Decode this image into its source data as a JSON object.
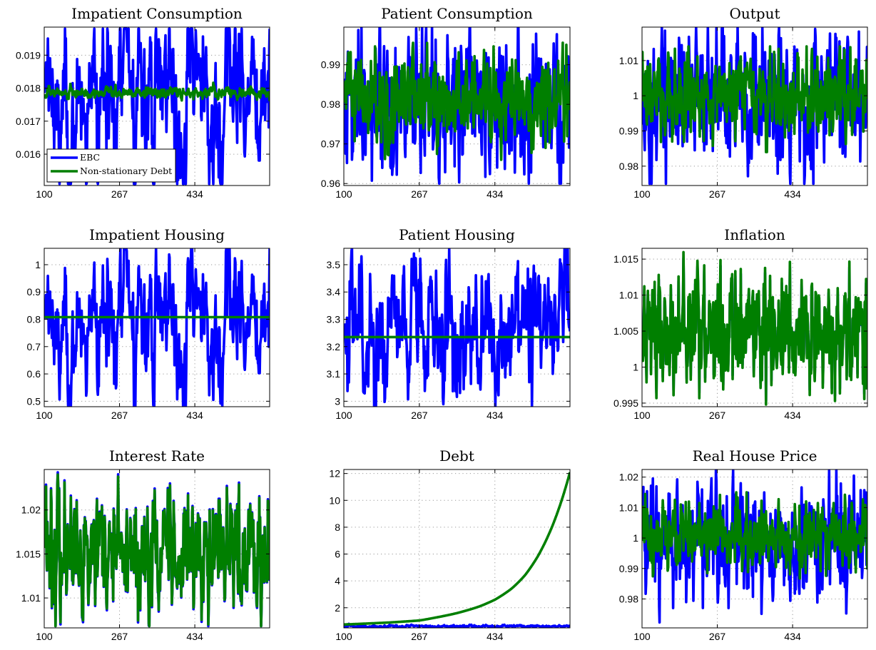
{
  "figure": {
    "x_ticks": [
      "100",
      "267",
      "434"
    ],
    "legend": [
      "EBC",
      "Non-stationary Debt"
    ],
    "colors": {
      "ebc": "#0000ff",
      "nsd": "#007f00",
      "grid": "#9a9a9a",
      "axis": "#000000"
    }
  },
  "chart_data": [
    {
      "type": "line",
      "title": "Impatient Consumption",
      "xlim": [
        100,
        600
      ],
      "ylim": [
        0.01505,
        0.01985
      ],
      "yticks": [
        0.016,
        0.017,
        0.018,
        0.019
      ],
      "ytick_labels": [
        "0.016",
        "0.017",
        "0.018",
        "0.019"
      ],
      "xticks": [
        100,
        267,
        434
      ],
      "xtick_labels": [
        "100",
        "267",
        "434"
      ],
      "series": [
        {
          "name": "EBC",
          "color": "#0000ff",
          "kind": "noise",
          "mean": 0.01775,
          "spread": 0.00135,
          "ar": 0.72,
          "lo": 0.0151,
          "hi": 0.0198,
          "seed": 11
        },
        {
          "name": "Non-stationary Debt",
          "color": "#007f00",
          "kind": "noise",
          "mean": 0.01785,
          "spread": 8e-05,
          "ar": 0.5,
          "lo": 0.0174,
          "hi": 0.0182,
          "seed": 12
        }
      ]
    },
    {
      "type": "line",
      "title": "Patient Consumption",
      "xlim": [
        100,
        600
      ],
      "ylim": [
        0.9595,
        0.9995
      ],
      "yticks": [
        0.96,
        0.97,
        0.98,
        0.99
      ],
      "ytick_labels": [
        "0.96",
        "0.97",
        "0.98",
        "0.99"
      ],
      "xticks": [
        100,
        267,
        434
      ],
      "xtick_labels": [
        "100",
        "267",
        "434"
      ],
      "series": [
        {
          "name": "EBC",
          "color": "#0000ff",
          "kind": "noise",
          "mean": 0.9805,
          "spread": 0.0085,
          "ar": 0.3,
          "lo": 0.96,
          "hi": 0.9995,
          "seed": 21
        },
        {
          "name": "Non-stationary Debt",
          "color": "#007f00",
          "kind": "noise",
          "mean": 0.981,
          "spread": 0.006,
          "ar": 0.3,
          "lo": 0.966,
          "hi": 0.9995,
          "seed": 22
        }
      ]
    },
    {
      "type": "line",
      "title": "Output",
      "xlim": [
        100,
        600
      ],
      "ylim": [
        0.9745,
        1.0195
      ],
      "yticks": [
        0.98,
        0.99,
        1,
        1.01
      ],
      "ytick_labels": [
        "0.98",
        "0.99",
        "1",
        "1.01"
      ],
      "xticks": [
        100,
        267,
        434
      ],
      "xtick_labels": [
        "100",
        "267",
        "434"
      ],
      "series": [
        {
          "name": "EBC",
          "color": "#0000ff",
          "kind": "noise",
          "mean": 0.9995,
          "spread": 0.0095,
          "ar": 0.3,
          "lo": 0.975,
          "hi": 1.0195,
          "seed": 31
        },
        {
          "name": "Non-stationary Debt",
          "color": "#007f00",
          "kind": "noise",
          "mean": 1.0,
          "spread": 0.006,
          "ar": 0.3,
          "lo": 0.984,
          "hi": 1.014,
          "seed": 32
        }
      ]
    },
    {
      "type": "line",
      "title": "Impatient Housing",
      "xlim": [
        100,
        600
      ],
      "ylim": [
        0.48,
        1.06
      ],
      "yticks": [
        0.5,
        0.6,
        0.7,
        0.8,
        0.9,
        1
      ],
      "ytick_labels": [
        "0.5",
        "0.6",
        "0.7",
        "0.8",
        "0.9",
        "1"
      ],
      "xticks": [
        100,
        267,
        434
      ],
      "xtick_labels": [
        "100",
        "267",
        "434"
      ],
      "series": [
        {
          "name": "EBC",
          "color": "#0000ff",
          "kind": "noise",
          "mean": 0.79,
          "spread": 0.13,
          "ar": 0.72,
          "lo": 0.48,
          "hi": 1.06,
          "seed": 11
        },
        {
          "name": "Non-stationary Debt",
          "color": "#007f00",
          "kind": "flat",
          "value": 0.808
        }
      ]
    },
    {
      "type": "line",
      "title": "Patient Housing",
      "xlim": [
        100,
        600
      ],
      "ylim": [
        2.98,
        3.56
      ],
      "yticks": [
        3,
        3.1,
        3.2,
        3.3,
        3.4,
        3.5
      ],
      "ytick_labels": [
        "3",
        "3.1",
        "3.2",
        "3.3",
        "3.4",
        "3.5"
      ],
      "xticks": [
        100,
        267,
        434
      ],
      "xtick_labels": [
        "100",
        "267",
        "434"
      ],
      "series": [
        {
          "name": "EBC",
          "color": "#0000ff",
          "kind": "noise",
          "mean": 3.245,
          "spread": 0.14,
          "ar": 0.72,
          "lo": 2.98,
          "hi": 3.56,
          "seed": 51
        },
        {
          "name": "Non-stationary Debt",
          "color": "#007f00",
          "kind": "flat",
          "value": 3.235
        }
      ]
    },
    {
      "type": "line",
      "title": "Inflation",
      "xlim": [
        100,
        600
      ],
      "ylim": [
        0.9945,
        1.0165
      ],
      "yticks": [
        0.995,
        1,
        1.005,
        1.01,
        1.015
      ],
      "ytick_labels": [
        "0.995",
        "1",
        "1.005",
        "1.01",
        "1.015"
      ],
      "xticks": [
        100,
        267,
        434
      ],
      "xtick_labels": [
        "100",
        "267",
        "434"
      ],
      "series": [
        {
          "name": "EBC",
          "color": "#0000ff",
          "kind": "noise",
          "mean": 1.005,
          "spread": 0.0035,
          "ar": 0.2,
          "lo": 0.9948,
          "hi": 1.0165,
          "seed": 61
        },
        {
          "name": "Non-stationary Debt",
          "color": "#007f00",
          "kind": "noise",
          "mean": 1.005,
          "spread": 0.0038,
          "ar": 0.2,
          "lo": 0.9948,
          "hi": 1.0165,
          "seed": 61
        }
      ]
    },
    {
      "type": "line",
      "title": "Interest Rate",
      "xlim": [
        100,
        600
      ],
      "ylim": [
        1.0066,
        1.0246
      ],
      "yticks": [
        1.01,
        1.015,
        1.02
      ],
      "ytick_labels": [
        "1.01",
        "1.015",
        "1.02"
      ],
      "xticks": [
        100,
        267,
        434
      ],
      "xtick_labels": [
        "100",
        "267",
        "434"
      ],
      "series": [
        {
          "name": "EBC",
          "color": "#0000ff",
          "kind": "noise",
          "mean": 1.0152,
          "spread": 0.0035,
          "ar": 0.35,
          "lo": 1.0068,
          "hi": 1.0245,
          "seed": 71
        },
        {
          "name": "Non-stationary Debt",
          "color": "#007f00",
          "kind": "noise",
          "mean": 1.0152,
          "spread": 0.0034,
          "ar": 0.35,
          "lo": 1.0068,
          "hi": 1.0245,
          "seed": 71
        }
      ]
    },
    {
      "type": "line",
      "title": "Debt",
      "xlim": [
        100,
        600
      ],
      "ylim": [
        0.5,
        12.3
      ],
      "yticks": [
        2,
        4,
        6,
        8,
        10,
        12
      ],
      "ytick_labels": [
        "2",
        "4",
        "6",
        "8",
        "10",
        "12"
      ],
      "xticks": [
        100,
        267,
        434
      ],
      "xtick_labels": [
        "100",
        "267",
        "434"
      ],
      "series": [
        {
          "name": "EBC",
          "color": "#0000ff",
          "kind": "noise",
          "mean": 0.62,
          "spread": 0.05,
          "ar": 0.7,
          "lo": 0.5,
          "hi": 0.9,
          "seed": 81
        },
        {
          "name": "Non-stationary Debt",
          "color": "#007f00",
          "kind": "exp",
          "x": [
            100,
            200,
            267,
            300,
            350,
            400,
            434,
            470,
            500,
            530,
            560,
            600
          ],
          "y": [
            0.75,
            0.9,
            1.05,
            1.25,
            1.6,
            2.1,
            2.6,
            3.4,
            4.4,
            5.9,
            8.0,
            12.1
          ]
        }
      ]
    },
    {
      "type": "line",
      "title": "Real House Price",
      "xlim": [
        100,
        600
      ],
      "ylim": [
        0.9705,
        1.0225
      ],
      "yticks": [
        0.98,
        0.99,
        1,
        1.01,
        1.02
      ],
      "ytick_labels": [
        "0.98",
        "0.99",
        "1",
        "1.01",
        "1.02"
      ],
      "xticks": [
        100,
        267,
        434
      ],
      "xtick_labels": [
        "100",
        "267",
        "434"
      ],
      "series": [
        {
          "name": "EBC",
          "color": "#0000ff",
          "kind": "noise",
          "mean": 1.0,
          "spread": 0.0095,
          "ar": 0.3,
          "lo": 0.971,
          "hi": 1.0222,
          "seed": 91
        },
        {
          "name": "Non-stationary Debt",
          "color": "#007f00",
          "kind": "noise",
          "mean": 1.0,
          "spread": 0.0055,
          "ar": 0.3,
          "lo": 0.985,
          "hi": 1.015,
          "seed": 92
        }
      ]
    }
  ]
}
